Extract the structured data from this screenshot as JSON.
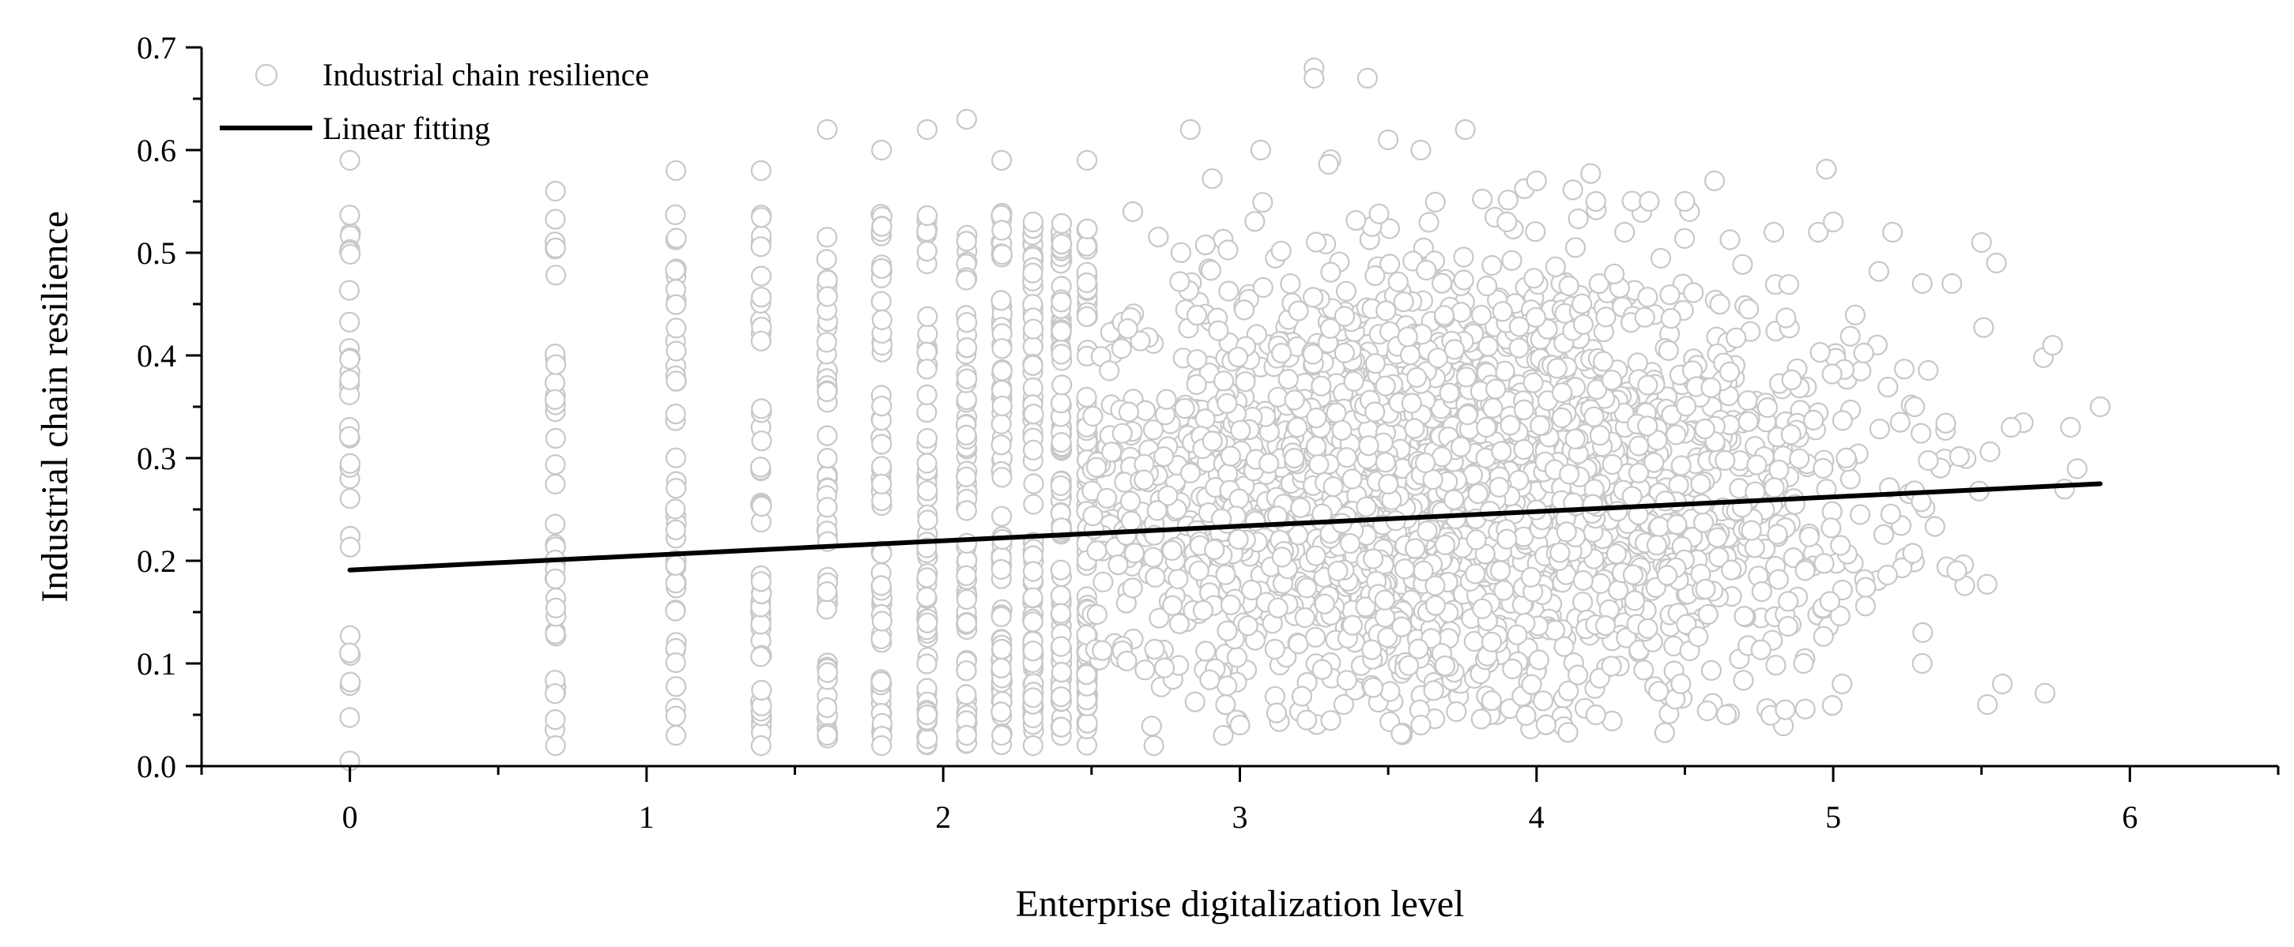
{
  "chart_data": {
    "type": "scatter",
    "title": "",
    "xlabel": "Enterprise digitalization level",
    "ylabel": "Industrial chain resilience",
    "xlim": [
      -0.5,
      6.5
    ],
    "ylim": [
      0.0,
      0.7
    ],
    "x_ticks": [
      "0",
      "1",
      "2",
      "3",
      "4",
      "5",
      "6"
    ],
    "y_ticks": [
      "0.0",
      "0.1",
      "0.2",
      "0.3",
      "0.4",
      "0.5",
      "0.6",
      "0.7"
    ],
    "grid": false,
    "legend": {
      "position": "top-left",
      "entries": [
        "Industrial chain resilience",
        "Linear fitting"
      ]
    },
    "series": [
      {
        "name": "Industrial chain resilience",
        "kind": "scatter",
        "marker": "hollow-circle",
        "color": "#c8c8c8",
        "discrete_x_levels": [
          0,
          0.693,
          1.099,
          1.386,
          1.609,
          1.792,
          1.946,
          2.079,
          2.197,
          2.303,
          2.398,
          2.485
        ],
        "continuous_x_range": [
          2.5,
          5.9
        ],
        "y_range": [
          0.0,
          0.68
        ],
        "points": [
          [
            0,
            0.59
          ],
          [
            0,
            0.005
          ],
          [
            0.693,
            0.56
          ],
          [
            0.693,
            0.02
          ],
          [
            1.099,
            0.58
          ],
          [
            1.099,
            0.03
          ],
          [
            1.386,
            0.58
          ],
          [
            1.386,
            0.02
          ],
          [
            1.609,
            0.62
          ],
          [
            1.609,
            0.03
          ],
          [
            1.792,
            0.6
          ],
          [
            1.792,
            0.02
          ],
          [
            1.946,
            0.62
          ],
          [
            1.946,
            0.05
          ],
          [
            2.079,
            0.63
          ],
          [
            2.079,
            0.03
          ],
          [
            2.197,
            0.59
          ],
          [
            2.197,
            0.03
          ],
          [
            2.303,
            0.53
          ],
          [
            2.303,
            0.02
          ],
          [
            2.485,
            0.59
          ],
          [
            2.639,
            0.54
          ],
          [
            2.833,
            0.62
          ],
          [
            2.944,
            0.03
          ],
          [
            3.07,
            0.6
          ],
          [
            3.25,
            0.68
          ],
          [
            3.25,
            0.67
          ],
          [
            3.43,
            0.67
          ],
          [
            3.5,
            0.61
          ],
          [
            3.61,
            0.6
          ],
          [
            3.76,
            0.62
          ],
          [
            3.9,
            0.53
          ],
          [
            4.0,
            0.57
          ],
          [
            4.2,
            0.55
          ],
          [
            4.38,
            0.55
          ],
          [
            4.5,
            0.55
          ],
          [
            4.6,
            0.57
          ],
          [
            4.8,
            0.52
          ],
          [
            4.95,
            0.52
          ],
          [
            5.0,
            0.53
          ],
          [
            5.2,
            0.52
          ],
          [
            5.3,
            0.47
          ],
          [
            5.4,
            0.47
          ],
          [
            5.5,
            0.51
          ],
          [
            5.55,
            0.49
          ],
          [
            5.6,
            0.33
          ],
          [
            5.8,
            0.33
          ],
          [
            5.9,
            0.35
          ],
          [
            5.52,
            0.06
          ],
          [
            5.57,
            0.08
          ],
          [
            5.03,
            0.08
          ],
          [
            4.64,
            0.05
          ],
          [
            4.2,
            0.05
          ],
          [
            3.61,
            0.04
          ],
          [
            3.0,
            0.04
          ],
          [
            2.71,
            0.02
          ],
          [
            3.35,
            0.06
          ],
          [
            4.9,
            0.1
          ],
          [
            5.3,
            0.1
          ]
        ]
      },
      {
        "name": "Linear fitting",
        "kind": "line",
        "color": "#000000",
        "x": [
          0,
          5.9
        ],
        "y": [
          0.191,
          0.275
        ]
      }
    ]
  }
}
